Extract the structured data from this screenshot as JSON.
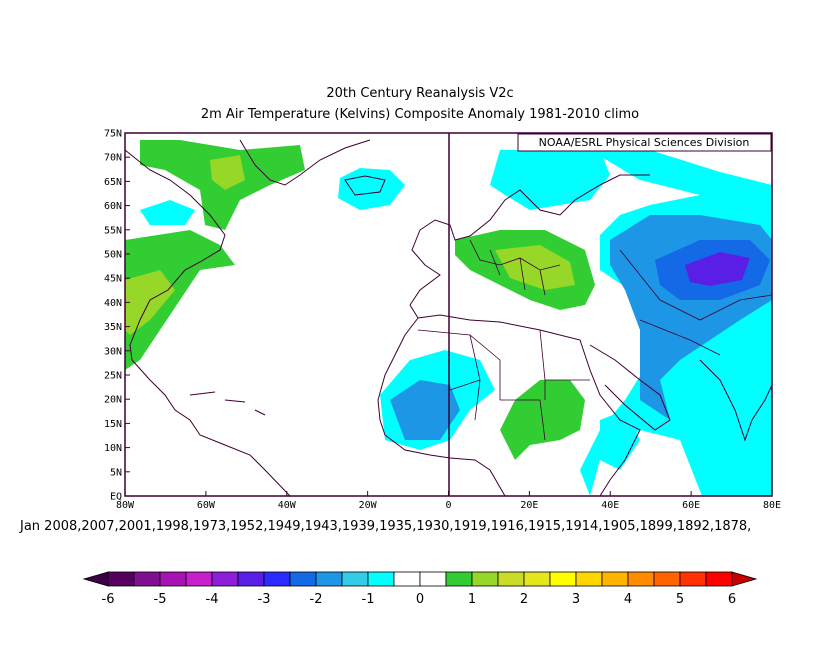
{
  "title_line1": "20th Century Reanalysis V2c",
  "title_line2": "2m Air Temperature (Kelvins) Composite Anomaly 1981-2010 climo",
  "credit": "NOAA/ESRL Physical Sciences Division",
  "members_label": "Jan 2008,2007,2001,1998,1973,1952,1949,1943,1939,1935,1930,1919,1916,1915,1914,1905,1899,1892,1878,",
  "lat_ticks": [
    "75N",
    "70N",
    "65N",
    "60N",
    "55N",
    "50N",
    "45N",
    "40N",
    "35N",
    "30N",
    "25N",
    "20N",
    "15N",
    "10N",
    "5N",
    "EQ"
  ],
  "lon_ticks": [
    "80W",
    "60W",
    "40W",
    "20W",
    "0",
    "20E",
    "40E",
    "60E",
    "80E"
  ],
  "colorbar": {
    "labels": [
      "-6",
      "-5",
      "-4",
      "-3",
      "-2",
      "-1",
      "0",
      "1",
      "2",
      "3",
      "4",
      "5",
      "6"
    ],
    "colors": [
      "#55005f",
      "#7f0f8f",
      "#a514b3",
      "#c81fcc",
      "#8d1fd9",
      "#5a1fe6",
      "#2b2bff",
      "#1469e6",
      "#1e96e6",
      "#33cce6",
      "#00ffff",
      "#ffffff",
      "#ffffff",
      "#32cd32",
      "#96d728",
      "#c8dc28",
      "#e6e61e",
      "#ffff00",
      "#ffd700",
      "#ffb400",
      "#ff8c00",
      "#ff6400",
      "#ff3200",
      "#ff0000"
    ],
    "under_color": "#3c0046",
    "over_color": "#c80000"
  }
}
